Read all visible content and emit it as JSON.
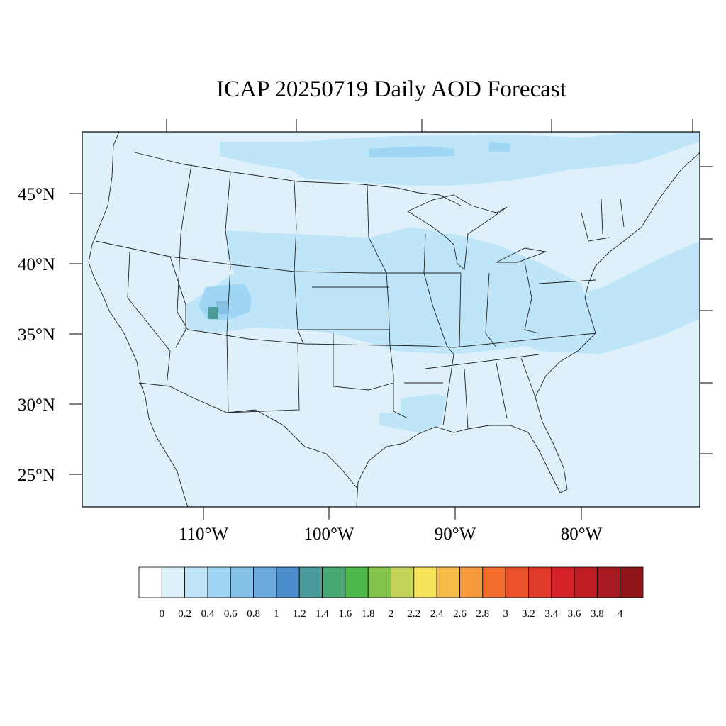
{
  "title": "ICAP 20250719 Daily AOD Forecast",
  "lat_labels": [
    "45°N",
    "40°N",
    "35°N",
    "30°N",
    "25°N"
  ],
  "lon_labels": [
    "110°W",
    "100°W",
    "90°W",
    "80°W"
  ],
  "colorbar": {
    "labels": [
      "0",
      "0.2",
      "0.4",
      "0.6",
      "0.8",
      "1",
      "1.2",
      "1.4",
      "1.6",
      "1.8",
      "2",
      "2.2",
      "2.4",
      "2.6",
      "2.8",
      "3",
      "3.2",
      "3.4",
      "3.6",
      "3.8",
      "4"
    ],
    "colors": [
      "#ffffff",
      "#def1fb",
      "#bfe6f8",
      "#9fd6f3",
      "#85c0e7",
      "#6aa8dd",
      "#4a8ccc",
      "#4b9b9a",
      "#46a870",
      "#4cb84a",
      "#84c44d",
      "#c3d35a",
      "#f8e45a",
      "#f7bb4a",
      "#f6993c",
      "#f26c2c",
      "#ec532b",
      "#e03a2b",
      "#d42027",
      "#be1e24",
      "#a61a1f",
      "#8e1519"
    ]
  },
  "map": {
    "background_aod_range": "0-0.2",
    "features": [
      {
        "name": "northern-band",
        "aod_range": "0.2-0.4"
      },
      {
        "name": "central-plains-band",
        "aod_range": "0.2-0.4"
      },
      {
        "name": "atlantic-plume",
        "aod_range": "0.2-0.4"
      },
      {
        "name": "utah-colorado-smoke",
        "aod_range": "0.4-0.6"
      },
      {
        "name": "southern-utah-hotspot",
        "aod_range": "1.2-1.4"
      }
    ],
    "colors": {
      "land_low": "#def1fb",
      "mid": "#bfe6f8",
      "high": "#9fd6f3",
      "higher": "#85c0e7",
      "hotspot": "#4b9b9a",
      "lines": "#222222"
    }
  }
}
